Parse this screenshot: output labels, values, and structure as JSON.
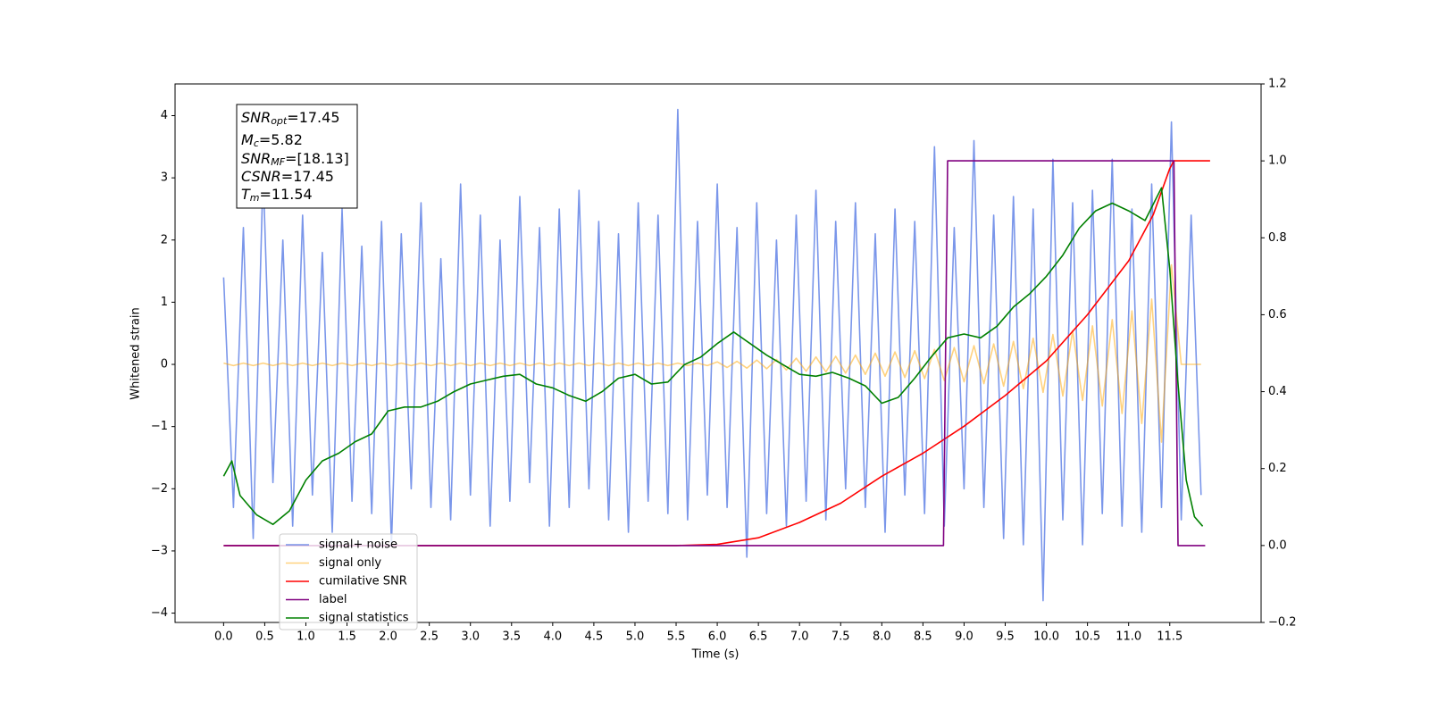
{
  "chart_data": {
    "type": "line",
    "xlabel": "Time (s)",
    "ylabel": "Whitened strain",
    "xlim": [
      -0.59,
      12.61
    ],
    "ylim": [
      -4.15,
      4.51
    ],
    "y2lim": [
      -0.2,
      1.2
    ],
    "xticks": [
      {
        "value": 0,
        "label": "0.0"
      },
      0.5,
      {
        "value": 1,
        "label": "1.0"
      },
      1.5,
      {
        "value": 2,
        "label": "2.0"
      },
      2.5,
      {
        "value": 3,
        "label": "3.0"
      },
      3.5,
      {
        "value": 4,
        "label": "4.0"
      },
      4.5,
      {
        "value": 5,
        "label": "5.0"
      },
      5.5,
      {
        "value": 6,
        "label": "6.0"
      },
      6.5,
      {
        "value": 7,
        "label": "7.0"
      },
      7.5,
      {
        "value": 8,
        "label": "8.0"
      },
      8.5,
      {
        "value": 9,
        "label": "9.0"
      },
      9.5,
      {
        "value": 10,
        "label": "10.0"
      },
      10.5,
      {
        "value": 11,
        "label": "11.0"
      },
      11.5
    ],
    "yticks": [
      {
        "value": -4,
        "label": "−4"
      },
      {
        "value": -3,
        "label": "−3"
      },
      {
        "value": -2,
        "label": "−2"
      },
      {
        "value": -1,
        "label": "−1"
      },
      0,
      1,
      2,
      3,
      4
    ],
    "y2ticks": [
      {
        "value": -0.2,
        "label": "−0.2"
      },
      {
        "value": 0,
        "label": "0.0"
      },
      0.2,
      0.4,
      0.6,
      0.8,
      {
        "value": 1,
        "label": "1.0"
      },
      1.2
    ],
    "grid": false,
    "annotations": [
      {
        "symbol": "SNR",
        "sub": "opt",
        "text": "=17.45"
      },
      {
        "symbol": "M",
        "sub": "c",
        "text": "=5.82"
      },
      {
        "symbol": "SNR",
        "sub": "MF",
        "text": "=[18.13]"
      },
      {
        "symbol": "CSNR",
        "text": "=17.45"
      },
      {
        "symbol": "T",
        "sub": "m",
        "text": "=11.54"
      }
    ],
    "series": [
      {
        "name": "signal+ noise",
        "color": "#4169e1",
        "alpha": 0.7,
        "axis": "y",
        "x": [
          0,
          0.12,
          0.24,
          0.36,
          0.48,
          0.6,
          0.72,
          0.84,
          0.96,
          1.08,
          1.2,
          1.32,
          1.44,
          1.56,
          1.68,
          1.8,
          1.92,
          2.04,
          2.16,
          2.28,
          2.4,
          2.52,
          2.64,
          2.76,
          2.88,
          3,
          3.12,
          3.24,
          3.36,
          3.48,
          3.6,
          3.72,
          3.84,
          3.96,
          4.08,
          4.2,
          4.32,
          4.44,
          4.56,
          4.68,
          4.8,
          4.92,
          5.04,
          5.16,
          5.28,
          5.4,
          5.52,
          5.64,
          5.76,
          5.88,
          6,
          6.12,
          6.24,
          6.36,
          6.48,
          6.6,
          6.72,
          6.84,
          6.96,
          7.08,
          7.2,
          7.32,
          7.44,
          7.56,
          7.68,
          7.8,
          7.92,
          8.04,
          8.16,
          8.28,
          8.4,
          8.52,
          8.64,
          8.76,
          8.88,
          9,
          9.12,
          9.24,
          9.36,
          9.48,
          9.6,
          9.72,
          9.84,
          9.96,
          10.08,
          10.2,
          10.32,
          10.44,
          10.56,
          10.68,
          10.8,
          10.92,
          11.04,
          11.16,
          11.28,
          11.4,
          11.52,
          11.64,
          11.76,
          11.88
        ],
        "values": [
          1.4,
          -2.3,
          2.2,
          -2.8,
          3.1,
          -1.9,
          2.0,
          -2.6,
          2.4,
          -2.1,
          1.8,
          -2.7,
          2.5,
          -2.2,
          1.9,
          -2.4,
          2.3,
          -2.9,
          2.1,
          -2.0,
          2.6,
          -2.3,
          1.7,
          -2.5,
          2.9,
          -2.1,
          2.4,
          -2.6,
          2.0,
          -2.2,
          2.7,
          -1.9,
          2.2,
          -2.6,
          2.5,
          -2.3,
          2.8,
          -2.0,
          2.3,
          -2.5,
          2.1,
          -2.7,
          2.6,
          -2.2,
          2.4,
          -2.4,
          4.1,
          -2.5,
          2.3,
          -2.1,
          2.9,
          -2.3,
          2.2,
          -3.1,
          2.6,
          -2.4,
          2.0,
          -2.6,
          2.4,
          -2.2,
          2.8,
          -2.5,
          2.3,
          -2.0,
          2.6,
          -2.3,
          2.1,
          -2.7,
          2.5,
          -2.1,
          2.3,
          -2.4,
          3.5,
          -2.6,
          2.2,
          -2.0,
          3.6,
          -2.3,
          2.4,
          -2.8,
          2.7,
          -2.9,
          2.5,
          -3.8,
          3.3,
          -2.5,
          2.6,
          -2.9,
          2.8,
          -2.4,
          3.3,
          -2.6,
          2.5,
          -2.7,
          2.9,
          -2.3,
          3.9,
          -2.5,
          2.4,
          -2.1
        ]
      },
      {
        "name": "signal only",
        "color": "#ffa500",
        "alpha": 0.5,
        "axis": "y",
        "x": [
          0,
          0.12,
          0.24,
          0.36,
          0.48,
          0.6,
          0.72,
          0.84,
          0.96,
          1.08,
          1.2,
          1.32,
          1.44,
          1.56,
          1.68,
          1.8,
          1.92,
          2.04,
          2.16,
          2.28,
          2.4,
          2.52,
          2.64,
          2.76,
          2.88,
          3,
          3.12,
          3.24,
          3.36,
          3.48,
          3.6,
          3.72,
          3.84,
          3.96,
          4.08,
          4.2,
          4.32,
          4.44,
          4.56,
          4.68,
          4.8,
          4.92,
          5.04,
          5.16,
          5.28,
          5.4,
          5.52,
          5.64,
          5.76,
          5.88,
          6,
          6.12,
          6.24,
          6.36,
          6.48,
          6.6,
          6.72,
          6.84,
          6.96,
          7.08,
          7.2,
          7.32,
          7.44,
          7.56,
          7.68,
          7.8,
          7.92,
          8.04,
          8.16,
          8.28,
          8.4,
          8.52,
          8.64,
          8.76,
          8.88,
          9,
          9.12,
          9.24,
          9.36,
          9.48,
          9.6,
          9.72,
          9.84,
          9.96,
          10.08,
          10.2,
          10.32,
          10.44,
          10.56,
          10.68,
          10.8,
          10.92,
          11.04,
          11.16,
          11.28,
          11.4,
          11.52,
          11.64,
          11.76,
          11.88
        ],
        "values": [
          0.02,
          -0.02,
          0.02,
          -0.02,
          0.02,
          -0.02,
          0.02,
          -0.02,
          0.02,
          -0.02,
          0.02,
          -0.02,
          0.02,
          -0.02,
          0.02,
          -0.02,
          0.02,
          -0.02,
          0.02,
          -0.02,
          0.02,
          -0.02,
          0.02,
          -0.02,
          0.02,
          -0.02,
          0.02,
          -0.02,
          0.02,
          -0.02,
          0.02,
          -0.02,
          0.02,
          -0.02,
          0.02,
          -0.02,
          0.02,
          -0.02,
          0.02,
          -0.02,
          0.02,
          -0.02,
          0.02,
          -0.02,
          0.02,
          -0.02,
          0.02,
          -0.02,
          0.02,
          -0.02,
          0.04,
          -0.05,
          0.05,
          -0.06,
          0.07,
          -0.07,
          0.08,
          -0.09,
          0.1,
          -0.11,
          0.12,
          -0.12,
          0.13,
          -0.14,
          0.15,
          -0.16,
          0.18,
          -0.19,
          0.2,
          -0.21,
          0.22,
          -0.23,
          0.24,
          -0.26,
          0.27,
          -0.28,
          0.3,
          -0.31,
          0.33,
          -0.35,
          0.37,
          -0.39,
          0.42,
          -0.45,
          0.48,
          -0.51,
          0.54,
          -0.58,
          0.62,
          -0.67,
          0.72,
          -0.79,
          0.86,
          -0.95,
          1.05,
          -1.25,
          1.6,
          0,
          0,
          0
        ]
      },
      {
        "name": "cumilative SNR",
        "color": "#ff0000",
        "axis": "y2",
        "x": [
          0,
          5.5,
          6.0,
          6.5,
          7.0,
          7.5,
          8.0,
          8.5,
          9.0,
          9.5,
          10.0,
          10.5,
          11.0,
          11.3,
          11.5,
          11.55,
          11.99
        ],
        "values": [
          0,
          0,
          0.003,
          0.02,
          0.06,
          0.11,
          0.18,
          0.24,
          0.31,
          0.39,
          0.48,
          0.6,
          0.74,
          0.86,
          0.98,
          1.0,
          1.0
        ]
      },
      {
        "name": "label",
        "color": "#800080",
        "axis": "y2",
        "x": [
          0,
          8.75,
          8.8,
          11.55,
          11.6,
          11.93
        ],
        "values": [
          0,
          0,
          1,
          1,
          0,
          0
        ]
      },
      {
        "name": "signal statistics",
        "color": "#008000",
        "axis": "y2",
        "x": [
          0,
          0.1,
          0.2,
          0.4,
          0.6,
          0.8,
          1.0,
          1.2,
          1.4,
          1.6,
          1.8,
          2.0,
          2.2,
          2.4,
          2.6,
          2.8,
          3.0,
          3.2,
          3.4,
          3.6,
          3.8,
          4.0,
          4.2,
          4.4,
          4.6,
          4.8,
          5.0,
          5.2,
          5.4,
          5.6,
          5.8,
          6.0,
          6.2,
          6.4,
          6.6,
          6.8,
          7.0,
          7.2,
          7.4,
          7.6,
          7.8,
          8.0,
          8.2,
          8.4,
          8.6,
          8.8,
          9.0,
          9.2,
          9.4,
          9.6,
          9.8,
          10.0,
          10.2,
          10.4,
          10.6,
          10.8,
          11.0,
          11.2,
          11.4,
          11.5,
          11.6,
          11.7,
          11.8,
          11.9
        ],
        "values": [
          0.18,
          0.22,
          0.13,
          0.08,
          0.055,
          0.09,
          0.17,
          0.22,
          0.24,
          0.27,
          0.29,
          0.35,
          0.36,
          0.36,
          0.375,
          0.4,
          0.42,
          0.43,
          0.44,
          0.445,
          0.42,
          0.41,
          0.39,
          0.375,
          0.4,
          0.435,
          0.445,
          0.42,
          0.425,
          0.47,
          0.49,
          0.525,
          0.555,
          0.525,
          0.495,
          0.47,
          0.445,
          0.44,
          0.45,
          0.435,
          0.415,
          0.37,
          0.385,
          0.435,
          0.49,
          0.54,
          0.55,
          0.54,
          0.57,
          0.62,
          0.655,
          0.7,
          0.755,
          0.825,
          0.87,
          0.89,
          0.87,
          0.845,
          0.93,
          0.72,
          0.42,
          0.17,
          0.075,
          0.05
        ]
      }
    ]
  }
}
